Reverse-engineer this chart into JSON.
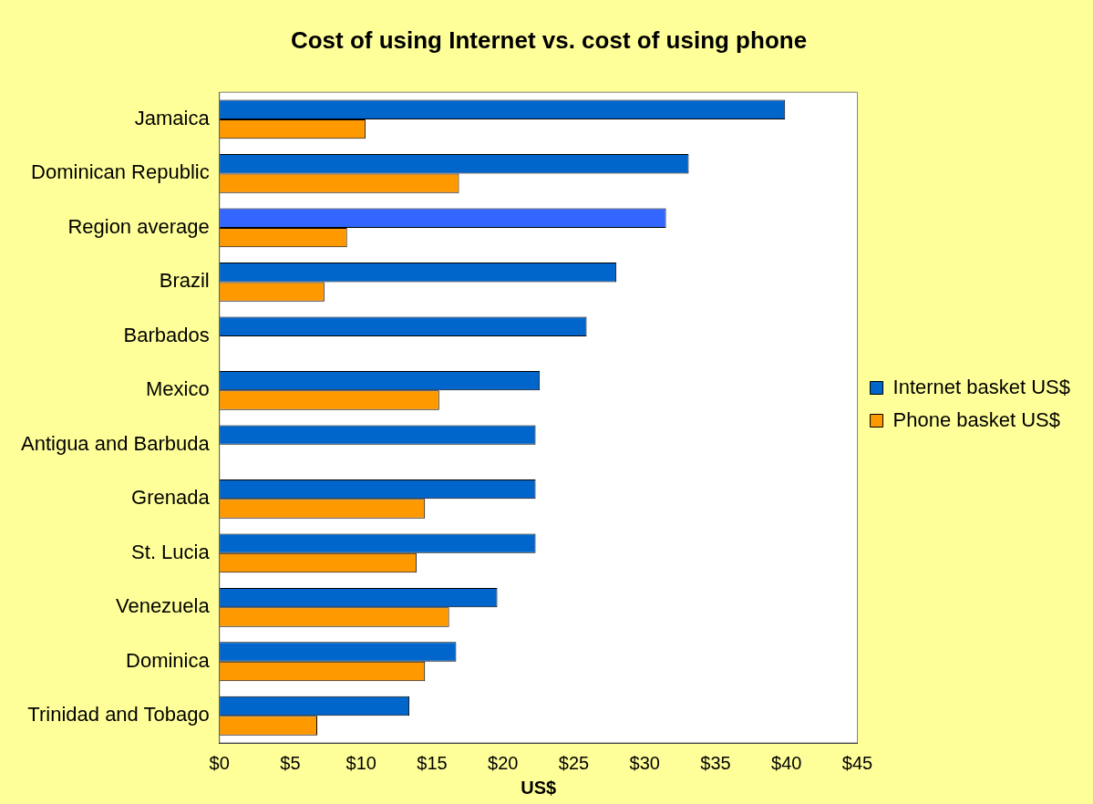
{
  "chart_data": {
    "type": "bar",
    "orientation": "horizontal",
    "title": "Cost of using Internet vs. cost of using phone",
    "xlabel": "US$",
    "categories": [
      "Jamaica",
      "Dominican Republic",
      "Region average",
      "Brazil",
      "Barbados",
      "Mexico",
      "Antigua and Barbuda",
      "Grenada",
      "St. Lucia",
      "Venezuela",
      "Dominica",
      "Trinidad and Tobago"
    ],
    "series": [
      {
        "name": "Internet basket US$",
        "color": "#0066cc",
        "colors": [
          "#0066cc",
          "#0066cc",
          "#3366ff",
          "#0066cc",
          "#0066cc",
          "#0066cc",
          "#0066cc",
          "#0066cc",
          "#0066cc",
          "#0066cc",
          "#0066cc",
          "#0066cc"
        ],
        "values": [
          39.9,
          33.1,
          31.5,
          28.0,
          25.9,
          22.6,
          22.3,
          22.3,
          22.3,
          19.6,
          16.7,
          13.4
        ]
      },
      {
        "name": "Phone basket US$",
        "color": "#ff9900",
        "values": [
          10.3,
          16.9,
          9.0,
          7.4,
          null,
          15.5,
          null,
          14.5,
          13.9,
          16.2,
          14.5,
          6.9
        ]
      }
    ],
    "xlim": [
      0,
      45
    ],
    "xticks": [
      {
        "value": 0,
        "label": "$0"
      },
      {
        "value": 5,
        "label": "$5"
      },
      {
        "value": 10,
        "label": "$10"
      },
      {
        "value": 15,
        "label": "$15"
      },
      {
        "value": 20,
        "label": "$20"
      },
      {
        "value": 25,
        "label": "$25"
      },
      {
        "value": 30,
        "label": "$30"
      },
      {
        "value": 35,
        "label": "$35"
      },
      {
        "value": 40,
        "label": "$40"
      },
      {
        "value": 45,
        "label": "$45"
      }
    ],
    "grid": false,
    "legend": "right"
  }
}
